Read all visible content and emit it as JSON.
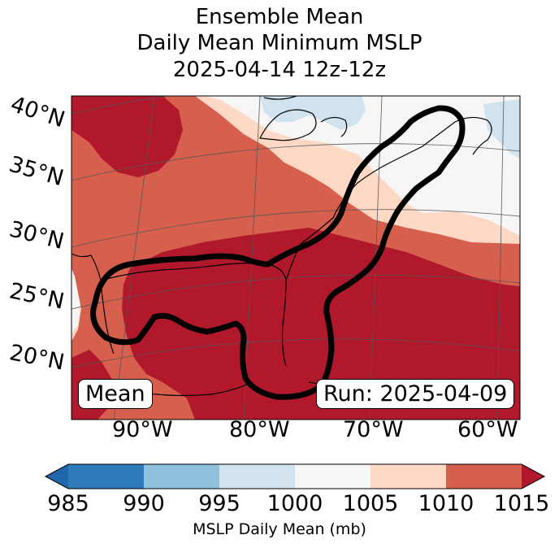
{
  "title": {
    "line1": "Ensemble Mean",
    "line2": "Daily Mean Minimum MSLP",
    "line3": "2025-04-14 12z-12z"
  },
  "map": {
    "lat_labels": [
      "40°N",
      "35°N",
      "30°N",
      "25°N",
      "20°N"
    ],
    "lon_labels": [
      "90°W",
      "80°W",
      "70°W",
      "60°W"
    ],
    "mean_label": "Mean",
    "run_label": "Run: 2025-04-09",
    "colors": {
      "c985": "#2f7ab8",
      "c990": "#8fc2dd",
      "c995": "#d0e3ef",
      "c1000": "#f6f6f6",
      "c1005": "#fdd9c5",
      "c1010": "#d6604d",
      "c1015": "#b2182b"
    },
    "outline_color": "#000000"
  },
  "colorbar": {
    "ticks": [
      "985",
      "990",
      "995",
      "1000",
      "1005",
      "1010",
      "1015"
    ],
    "label": "MSLP Daily Mean (mb)",
    "colors": [
      "#2f7ab8",
      "#8fc2dd",
      "#d0e3ef",
      "#f6f6f6",
      "#fdd9c5",
      "#d6604d"
    ],
    "under_color": "#2166ac",
    "over_color": "#b2182b"
  }
}
